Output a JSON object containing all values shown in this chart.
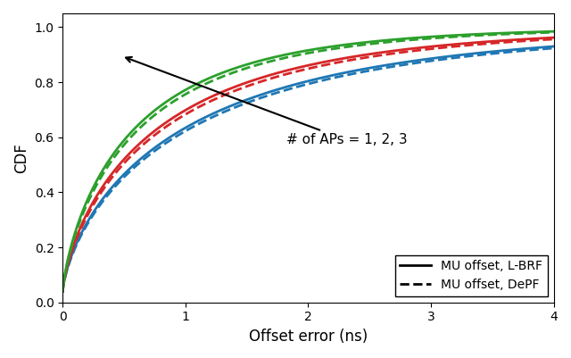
{
  "xlabel": "Offset error (ns)",
  "ylabel": "CDF",
  "xlim": [
    0,
    4
  ],
  "ylim": [
    0.0,
    1.05
  ],
  "yticks": [
    0.0,
    0.2,
    0.4,
    0.6,
    0.8,
    1.0
  ],
  "xticks": [
    0,
    1,
    2,
    3,
    4
  ],
  "colors": [
    "#1f77b4",
    "#d62728",
    "#2ca02c"
  ],
  "annotation_text": "# of APs = 1, 2, 3",
  "legend_solid": "MU offset, L-BRF",
  "legend_dashed": "MU offset, DePF",
  "linewidth": 2.0,
  "lbrf_scales": [
    1.05,
    0.82,
    0.62
  ],
  "lbrf_shapes": [
    0.72,
    0.74,
    0.76
  ],
  "depf_scales": [
    1.1,
    0.87,
    0.66
  ],
  "depf_shapes": [
    0.72,
    0.74,
    0.76
  ],
  "initial_val": 0.04
}
